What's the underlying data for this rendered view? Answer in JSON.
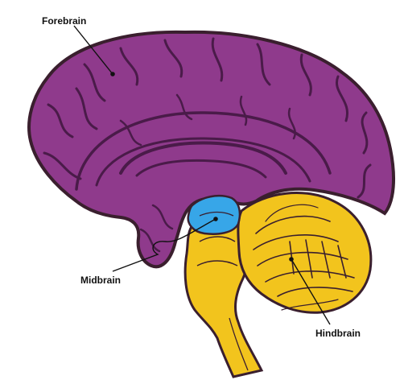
{
  "diagram": {
    "labels": {
      "forebrain": "Forebrain",
      "midbrain": "Midbrain",
      "hindbrain": "Hindbrain"
    },
    "colors": {
      "forebrain": "#8f3a8c",
      "midbrain": "#37a6e8",
      "hindbrain": "#f2c41d",
      "outline": "#3a1f2e",
      "fold": "#4a1b49",
      "pointer": "#111111"
    },
    "regions": [
      "forebrain",
      "midbrain",
      "hindbrain"
    ]
  }
}
